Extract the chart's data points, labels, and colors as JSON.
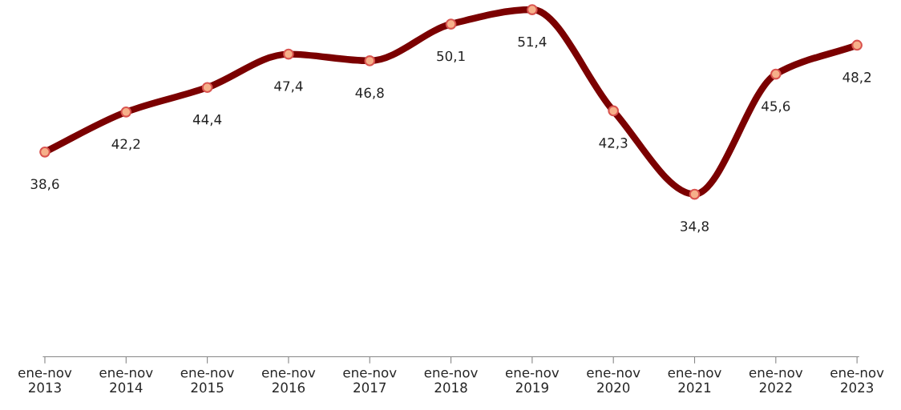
{
  "chart_data": {
    "type": "line",
    "categories": [
      "ene-nov\n2013",
      "ene-nov\n2014",
      "ene-nov\n2015",
      "ene-nov\n2016",
      "ene-nov\n2017",
      "ene-nov\n2018",
      "ene-nov\n2019",
      "ene-nov\n2020",
      "ene-nov\n2021",
      "ene-nov\n2022",
      "ene-nov\n2023"
    ],
    "series": [
      {
        "color": "#7b0000",
        "values": [
          38.6,
          42.2,
          44.4,
          47.4,
          46.8,
          50.1,
          51.4,
          42.3,
          34.8,
          45.6,
          48.2
        ],
        "value_labels": [
          "38,6",
          "42,2",
          "44,4",
          "47,4",
          "46,8",
          "50,1",
          "51,4",
          "42,3",
          "34,8",
          "45,6",
          "48,2"
        ]
      }
    ],
    "marker": "circle",
    "line_style": "solid",
    "grid": false,
    "legend": false,
    "tick_labels": "x"
  }
}
